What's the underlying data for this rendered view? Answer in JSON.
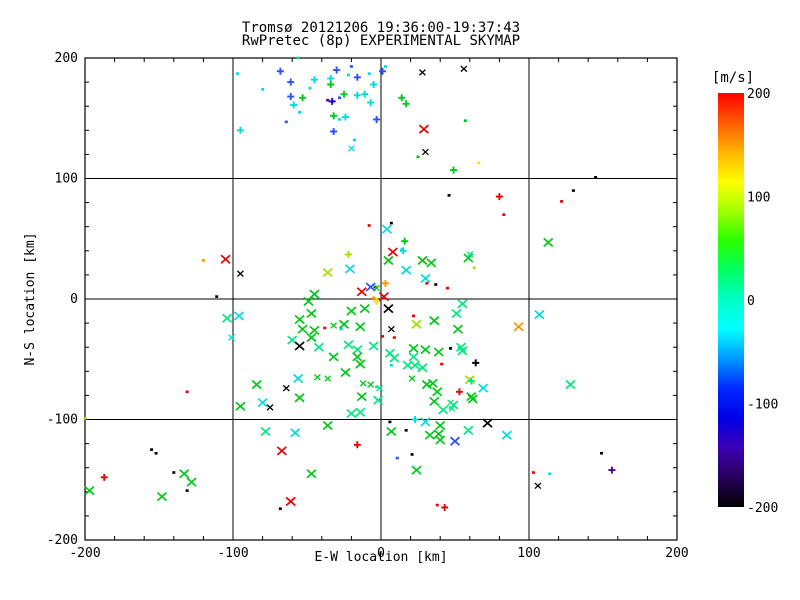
{
  "title": {
    "line1": "Tromsø 20121206 19:36:00-19:37:43",
    "line2": "RwPretec (8p) EXPERIMENTAL SKYMAP"
  },
  "chart_data": {
    "type": "scatter",
    "title": "Tromsø 20121206 19:36:00-19:37:43 / RwPretec (8p) EXPERIMENTAL SKYMAP",
    "xlabel": "E-W location [km]",
    "ylabel": "N-S location [km]",
    "xlim": [
      -200,
      200
    ],
    "ylim": [
      -200,
      200
    ],
    "major_ticks": [
      -200,
      -100,
      0,
      100,
      200
    ],
    "minor_tick_step": 20,
    "grid_lines": [
      -100,
      0,
      100
    ],
    "grid": "on",
    "colorbar": {
      "label": "[m/s]",
      "min": -200,
      "max": 200,
      "ticks": [
        200,
        100,
        0,
        -100,
        -200
      ],
      "gradient_top_to_bottom": [
        "#FF0000",
        "#FF5A00",
        "#FFB400",
        "#FFFF00",
        "#A0FF00",
        "#28FF00",
        "#00FF64",
        "#00FFC8",
        "#00FFFF",
        "#0096FF",
        "#0028FF",
        "#0000E6",
        "#3C00B4",
        "#28005A",
        "#000000"
      ]
    },
    "palette": {
      "red": "#E80000",
      "orange": "#FF9000",
      "yellow": "#FFE000",
      "chartreuse": "#A0E000",
      "green": "#00C818",
      "spring": "#00E880",
      "cyan": "#00DCDC",
      "blue": "#2850FF",
      "navy": "#2000D0",
      "purple": "#500090",
      "black": "#000000"
    },
    "marker_legend": {
      "X": "large x-cross",
      "x": "small x-cross",
      "p": "plus",
      "s": "speck"
    },
    "points": [
      [
        -97,
        187,
        "cyan",
        "s"
      ],
      [
        -68,
        189,
        "blue",
        "p"
      ],
      [
        -61,
        180,
        "blue",
        "p"
      ],
      [
        -45,
        182,
        "cyan",
        "p"
      ],
      [
        -34,
        183,
        "cyan",
        "p"
      ],
      [
        -34,
        178,
        "green",
        "p"
      ],
      [
        -30,
        190,
        "blue",
        "p"
      ],
      [
        -22,
        186,
        "cyan",
        "s"
      ],
      [
        -20,
        193,
        "blue",
        "s"
      ],
      [
        -16,
        184,
        "blue",
        "p"
      ],
      [
        -8,
        187,
        "cyan",
        "s"
      ],
      [
        -5,
        178,
        "cyan",
        "p"
      ],
      [
        -80,
        174,
        "cyan",
        "s"
      ],
      [
        -61,
        168,
        "blue",
        "p"
      ],
      [
        -53,
        167,
        "green",
        "p"
      ],
      [
        -48,
        175,
        "cyan",
        "s"
      ],
      [
        -33,
        164,
        "navy",
        "p"
      ],
      [
        -36,
        165,
        "purple",
        "s"
      ],
      [
        -28,
        167,
        "blue",
        "s"
      ],
      [
        -25,
        170,
        "green",
        "p"
      ],
      [
        -16,
        169,
        "cyan",
        "p"
      ],
      [
        -11,
        170,
        "cyan",
        "p"
      ],
      [
        -59,
        161,
        "cyan",
        "p"
      ],
      [
        -55,
        155,
        "cyan",
        "s"
      ],
      [
        -32,
        152,
        "green",
        "p"
      ],
      [
        -28,
        149,
        "cyan",
        "s"
      ],
      [
        -24,
        151,
        "cyan",
        "p"
      ],
      [
        -64,
        147,
        "blue",
        "s"
      ],
      [
        -95,
        140,
        "cyan",
        "p"
      ],
      [
        -32,
        139,
        "blue",
        "p"
      ],
      [
        -18,
        132,
        "cyan",
        "s"
      ],
      [
        -20,
        125,
        "cyan",
        "x"
      ],
      [
        -3,
        149,
        "blue",
        "p"
      ],
      [
        1,
        189,
        "blue",
        "p"
      ],
      [
        14,
        167,
        "green",
        "p"
      ],
      [
        17,
        162,
        "green",
        "p"
      ],
      [
        -56,
        200,
        "spring",
        "s"
      ],
      [
        3,
        193,
        "cyan",
        "s"
      ],
      [
        -7,
        163,
        "cyan",
        "p"
      ],
      [
        28,
        188,
        "black",
        "x"
      ],
      [
        56,
        191,
        "black",
        "x"
      ],
      [
        57,
        148,
        "green",
        "s"
      ],
      [
        29,
        141,
        "red",
        "X"
      ],
      [
        30,
        122,
        "black",
        "x"
      ],
      [
        25,
        118,
        "green",
        "s"
      ],
      [
        66,
        113,
        "yellow",
        "s"
      ],
      [
        49,
        107,
        "green",
        "p"
      ],
      [
        145,
        101,
        "black",
        "s"
      ],
      [
        46,
        86,
        "black",
        "s"
      ],
      [
        80,
        85,
        "red",
        "p"
      ],
      [
        130,
        90,
        "black",
        "s"
      ],
      [
        122,
        81,
        "red",
        "s"
      ],
      [
        83,
        70,
        "red",
        "s"
      ],
      [
        -8,
        61,
        "red",
        "s"
      ],
      [
        4,
        58,
        "cyan",
        "X"
      ],
      [
        7,
        63,
        "black",
        "s"
      ],
      [
        16,
        48,
        "green",
        "p"
      ],
      [
        14,
        41,
        "cyan",
        "s"
      ],
      [
        113,
        47,
        "green",
        "X"
      ],
      [
        -120,
        32,
        "orange",
        "s"
      ],
      [
        -105,
        33,
        "red",
        "X"
      ],
      [
        -95,
        21,
        "black",
        "x"
      ],
      [
        -111,
        2,
        "black",
        "s"
      ],
      [
        -22,
        37,
        "chartreuse",
        "p"
      ],
      [
        5,
        32,
        "green",
        "X"
      ],
      [
        8,
        39,
        "red",
        "X"
      ],
      [
        15,
        40,
        "cyan",
        "p"
      ],
      [
        28,
        32,
        "green",
        "X"
      ],
      [
        34,
        30,
        "green",
        "X"
      ],
      [
        59,
        34,
        "green",
        "X"
      ],
      [
        60,
        37,
        "spring",
        "x"
      ],
      [
        -36,
        22,
        "chartreuse",
        "X"
      ],
      [
        -21,
        25,
        "cyan",
        "X"
      ],
      [
        17,
        24,
        "cyan",
        "X"
      ],
      [
        30,
        17,
        "cyan",
        "X"
      ],
      [
        63,
        26,
        "chartreuse",
        "s"
      ],
      [
        -13,
        6,
        "red",
        "X"
      ],
      [
        -7,
        10,
        "blue",
        "X"
      ],
      [
        -4,
        10,
        "black",
        "s"
      ],
      [
        -3,
        9,
        "green",
        "x"
      ],
      [
        3,
        13,
        "orange",
        "p"
      ],
      [
        31,
        13,
        "red",
        "s"
      ],
      [
        37,
        12,
        "black",
        "s"
      ],
      [
        45,
        9,
        "red",
        "s"
      ],
      [
        -5,
        1,
        "orange",
        "s"
      ],
      [
        -3,
        -2,
        "yellow",
        "p"
      ],
      [
        2,
        2,
        "red",
        "X"
      ],
      [
        -45,
        4,
        "green",
        "X"
      ],
      [
        -49,
        -2,
        "green",
        "X"
      ],
      [
        107,
        -13,
        "cyan",
        "X"
      ],
      [
        93,
        -23,
        "orange",
        "X"
      ],
      [
        5,
        -8,
        "black",
        "X"
      ],
      [
        -20,
        -10,
        "green",
        "X"
      ],
      [
        -11,
        -8,
        "green",
        "X"
      ],
      [
        -55,
        -17,
        "green",
        "X"
      ],
      [
        -47,
        -12,
        "green",
        "X"
      ],
      [
        22,
        -14,
        "red",
        "s"
      ],
      [
        24,
        -21,
        "chartreuse",
        "X"
      ],
      [
        36,
        -18,
        "green",
        "X"
      ],
      [
        51,
        -12,
        "spring",
        "X"
      ],
      [
        55,
        -4,
        "spring",
        "X"
      ],
      [
        -104,
        -16,
        "spring",
        "X"
      ],
      [
        -96,
        -14,
        "cyan",
        "X"
      ],
      [
        -101,
        -32,
        "cyan",
        "x"
      ],
      [
        52,
        -25,
        "green",
        "X"
      ],
      [
        -53,
        -25,
        "green",
        "X"
      ],
      [
        -45,
        -26,
        "green",
        "X"
      ],
      [
        -38,
        -24,
        "red",
        "s"
      ],
      [
        -32,
        -22,
        "green",
        "x"
      ],
      [
        -27,
        -25,
        "cyan",
        "s"
      ],
      [
        -25,
        -21,
        "green",
        "X"
      ],
      [
        -14,
        -23,
        "green",
        "X"
      ],
      [
        7,
        -25,
        "black",
        "x"
      ],
      [
        9,
        -32,
        "red",
        "s"
      ],
      [
        -60,
        -34,
        "spring",
        "X"
      ],
      [
        -55,
        -39,
        "black",
        "X"
      ],
      [
        -47,
        -32,
        "green",
        "X"
      ],
      [
        -42,
        -40,
        "spring",
        "X"
      ],
      [
        -22,
        -38,
        "spring",
        "X"
      ],
      [
        -16,
        -42,
        "spring",
        "X"
      ],
      [
        -5,
        -39,
        "spring",
        "X"
      ],
      [
        1,
        -31,
        "red",
        "s"
      ],
      [
        22,
        -41,
        "green",
        "X"
      ],
      [
        30,
        -42,
        "green",
        "X"
      ],
      [
        39,
        -44,
        "green",
        "X"
      ],
      [
        47,
        -41,
        "black",
        "s"
      ],
      [
        54,
        -40,
        "spring",
        "X"
      ],
      [
        55,
        -43,
        "spring",
        "X"
      ],
      [
        -64,
        -74,
        "black",
        "x"
      ],
      [
        -56,
        -66,
        "cyan",
        "X"
      ],
      [
        -55,
        -82,
        "green",
        "X"
      ],
      [
        -43,
        -65,
        "green",
        "x"
      ],
      [
        -36,
        -66,
        "green",
        "x"
      ],
      [
        -32,
        -48,
        "green",
        "X"
      ],
      [
        -24,
        -61,
        "green",
        "X"
      ],
      [
        -16,
        -48,
        "green",
        "X"
      ],
      [
        -14,
        -54,
        "green",
        "X"
      ],
      [
        -13,
        -81,
        "green",
        "X"
      ],
      [
        -12,
        -70,
        "green",
        "x"
      ],
      [
        -7,
        -71,
        "green",
        "x"
      ],
      [
        -3,
        -73,
        "cyan",
        "s"
      ],
      [
        -2,
        -84,
        "spring",
        "X"
      ],
      [
        -1,
        -74,
        "spring",
        "x"
      ],
      [
        -14,
        -94,
        "spring",
        "X"
      ],
      [
        -20,
        -95,
        "spring",
        "X"
      ],
      [
        6,
        -45,
        "spring",
        "X"
      ],
      [
        7,
        -55,
        "cyan",
        "s"
      ],
      [
        9,
        -49,
        "spring",
        "X"
      ],
      [
        18,
        -55,
        "spring",
        "X"
      ],
      [
        22,
        -48,
        "spring",
        "X"
      ],
      [
        23,
        -55,
        "spring",
        "X"
      ],
      [
        28,
        -57,
        "spring",
        "X"
      ],
      [
        41,
        -54,
        "red",
        "s"
      ],
      [
        64,
        -53,
        "black",
        "p"
      ],
      [
        21,
        -66,
        "green",
        "x"
      ],
      [
        31,
        -71,
        "green",
        "X"
      ],
      [
        35,
        -70,
        "green",
        "X"
      ],
      [
        38,
        -77,
        "green",
        "X"
      ],
      [
        36,
        -85,
        "green",
        "X"
      ],
      [
        42,
        -92,
        "spring",
        "X"
      ],
      [
        47,
        -86,
        "spring",
        "x"
      ],
      [
        49,
        -88,
        "spring",
        "X"
      ],
      [
        53,
        -77,
        "red",
        "p"
      ],
      [
        60,
        -67,
        "chartreuse",
        "X"
      ],
      [
        61,
        -81,
        "green",
        "X"
      ],
      [
        69,
        -74,
        "cyan",
        "X"
      ],
      [
        128,
        -71,
        "spring",
        "X"
      ],
      [
        61,
        -68,
        "spring",
        "p"
      ],
      [
        62,
        -83,
        "green",
        "X"
      ],
      [
        48,
        -91,
        "spring",
        "x"
      ],
      [
        7,
        -110,
        "green",
        "X"
      ],
      [
        6,
        -102,
        "black",
        "s"
      ],
      [
        17,
        -109,
        "black",
        "s"
      ],
      [
        23,
        -100,
        "cyan",
        "p"
      ],
      [
        30,
        -102,
        "cyan",
        "X"
      ],
      [
        40,
        -105,
        "green",
        "X"
      ],
      [
        33,
        -113,
        "green",
        "X"
      ],
      [
        39,
        -112,
        "green",
        "X"
      ],
      [
        40,
        -117,
        "green",
        "X"
      ],
      [
        50,
        -118,
        "blue",
        "X"
      ],
      [
        59,
        -109,
        "spring",
        "X"
      ],
      [
        72,
        -103,
        "black",
        "X"
      ],
      [
        85,
        -113,
        "cyan",
        "X"
      ],
      [
        24,
        -142,
        "green",
        "X"
      ],
      [
        38,
        -171,
        "red",
        "s"
      ],
      [
        43,
        -173,
        "red",
        "p"
      ],
      [
        -58,
        -111,
        "cyan",
        "X"
      ],
      [
        -36,
        -105,
        "green",
        "X"
      ],
      [
        -16,
        -121,
        "red",
        "p"
      ],
      [
        11,
        -132,
        "blue",
        "s"
      ],
      [
        21,
        -129,
        "black",
        "s"
      ],
      [
        -95,
        -89,
        "green",
        "X"
      ],
      [
        -80,
        -86,
        "cyan",
        "X"
      ],
      [
        -75,
        -90,
        "black",
        "x"
      ],
      [
        -78,
        -110,
        "spring",
        "X"
      ],
      [
        -67,
        -126,
        "red",
        "X"
      ],
      [
        -61,
        -168,
        "red",
        "X"
      ],
      [
        -68,
        -174,
        "black",
        "s"
      ],
      [
        -47,
        -145,
        "green",
        "X"
      ],
      [
        -131,
        -77,
        "red",
        "s"
      ],
      [
        -84,
        -71,
        "green",
        "X"
      ],
      [
        -155,
        -125,
        "black",
        "s"
      ],
      [
        -152,
        -128,
        "black",
        "s"
      ],
      [
        -187,
        -148,
        "red",
        "p"
      ],
      [
        -140,
        -144,
        "black",
        "s"
      ],
      [
        -133,
        -145,
        "green",
        "X"
      ],
      [
        -128,
        -152,
        "green",
        "X"
      ],
      [
        -197,
        -159,
        "green",
        "X"
      ],
      [
        -148,
        -164,
        "green",
        "X"
      ],
      [
        -131,
        -159,
        "black",
        "s"
      ],
      [
        -200,
        -99,
        "chartreuse",
        "s"
      ],
      [
        149,
        -128,
        "black",
        "s"
      ],
      [
        156,
        -142,
        "purple",
        "p"
      ],
      [
        103,
        -144,
        "red",
        "s"
      ],
      [
        114,
        -145,
        "cyan",
        "s"
      ],
      [
        106,
        -155,
        "black",
        "x"
      ]
    ]
  }
}
